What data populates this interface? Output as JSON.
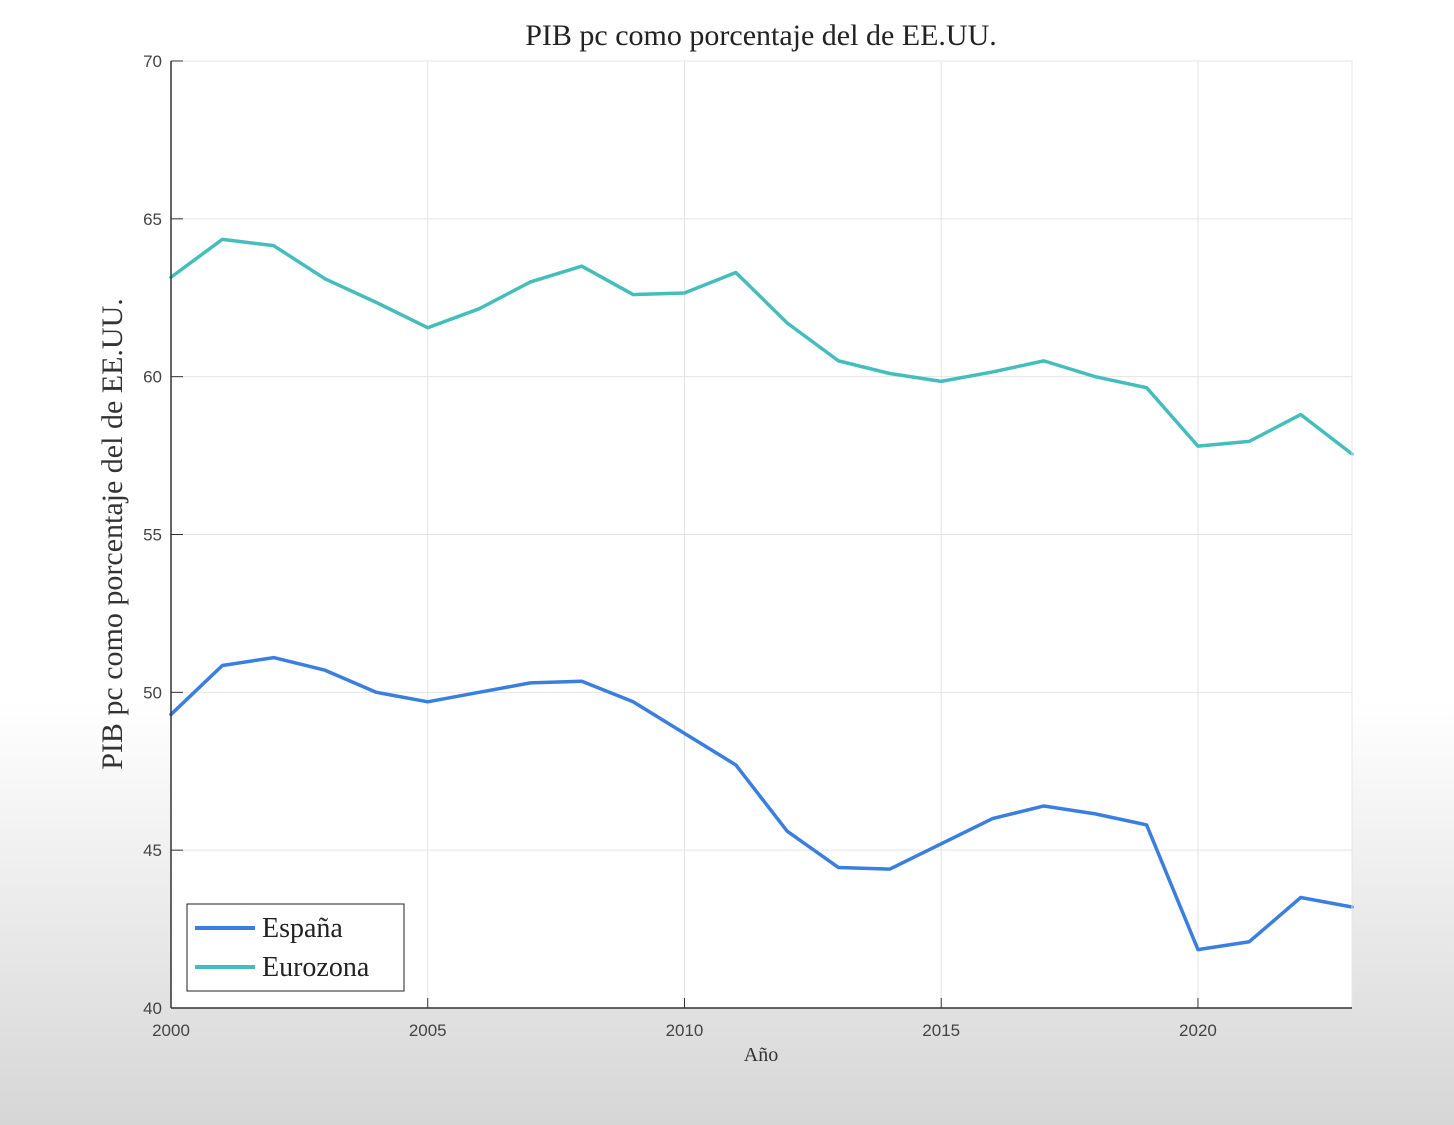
{
  "chart_data": {
    "type": "line",
    "title": "PIB pc como porcentaje del de EE.UU.",
    "xlabel": "Año",
    "ylabel": "PIB pc como porcentaje del de EE.UU.",
    "xlim": [
      2000,
      2023
    ],
    "ylim": [
      40,
      70
    ],
    "xticks": [
      2000,
      2005,
      2010,
      2015,
      2020
    ],
    "yticks": [
      40,
      45,
      50,
      55,
      60,
      65,
      70
    ],
    "grid": true,
    "legend_position": "bottom-left",
    "x": [
      2000,
      2001,
      2002,
      2003,
      2004,
      2005,
      2006,
      2007,
      2008,
      2009,
      2010,
      2011,
      2012,
      2013,
      2014,
      2015,
      2016,
      2017,
      2018,
      2019,
      2020,
      2021,
      2022,
      2023
    ],
    "series": [
      {
        "name": "España",
        "color": "#3a7fe0",
        "values": [
          49.3,
          50.85,
          51.1,
          50.7,
          50.0,
          49.7,
          50.0,
          50.3,
          50.35,
          49.7,
          48.7,
          47.7,
          45.6,
          44.45,
          44.4,
          45.2,
          46.0,
          46.4,
          46.15,
          45.8,
          41.85,
          42.1,
          43.5,
          43.2
        ]
      },
      {
        "name": "Eurozona",
        "color": "#46bdbd",
        "values": [
          63.15,
          64.35,
          64.15,
          63.1,
          62.35,
          61.55,
          62.15,
          63.0,
          63.5,
          62.6,
          62.65,
          63.3,
          61.7,
          60.5,
          60.1,
          59.85,
          60.15,
          60.5,
          60.0,
          59.65,
          57.8,
          57.95,
          58.8,
          57.55
        ]
      }
    ]
  }
}
